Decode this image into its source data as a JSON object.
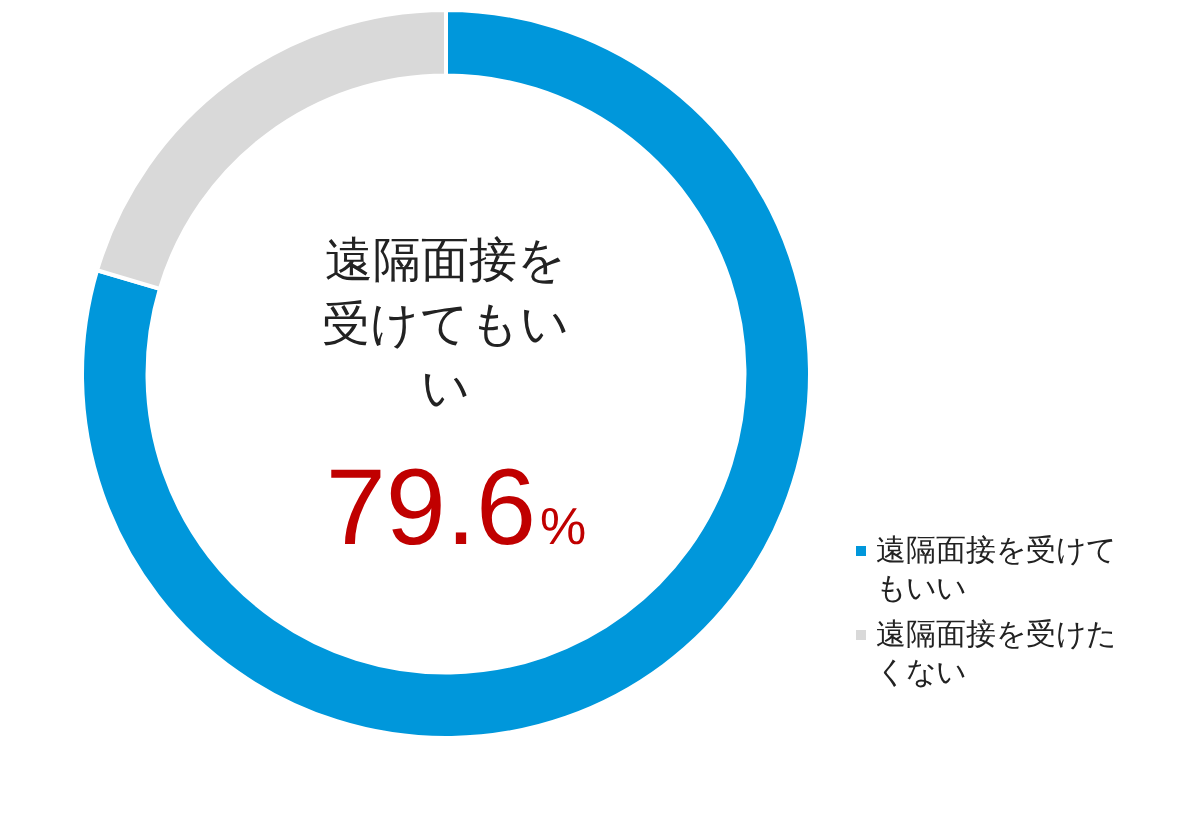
{
  "chart_data": {
    "type": "donut",
    "categories": [
      "遠隔面接を受けてもいい",
      "遠隔面接を受けたくない"
    ],
    "values": [
      79.6,
      20.4
    ],
    "colors": [
      "#0097db",
      "#d9d9d9"
    ],
    "value_labels": [
      "79.6%",
      null
    ],
    "annotations": [
      "遠隔面接を受けてもいい"
    ],
    "legend": "bottom right"
  }
}
